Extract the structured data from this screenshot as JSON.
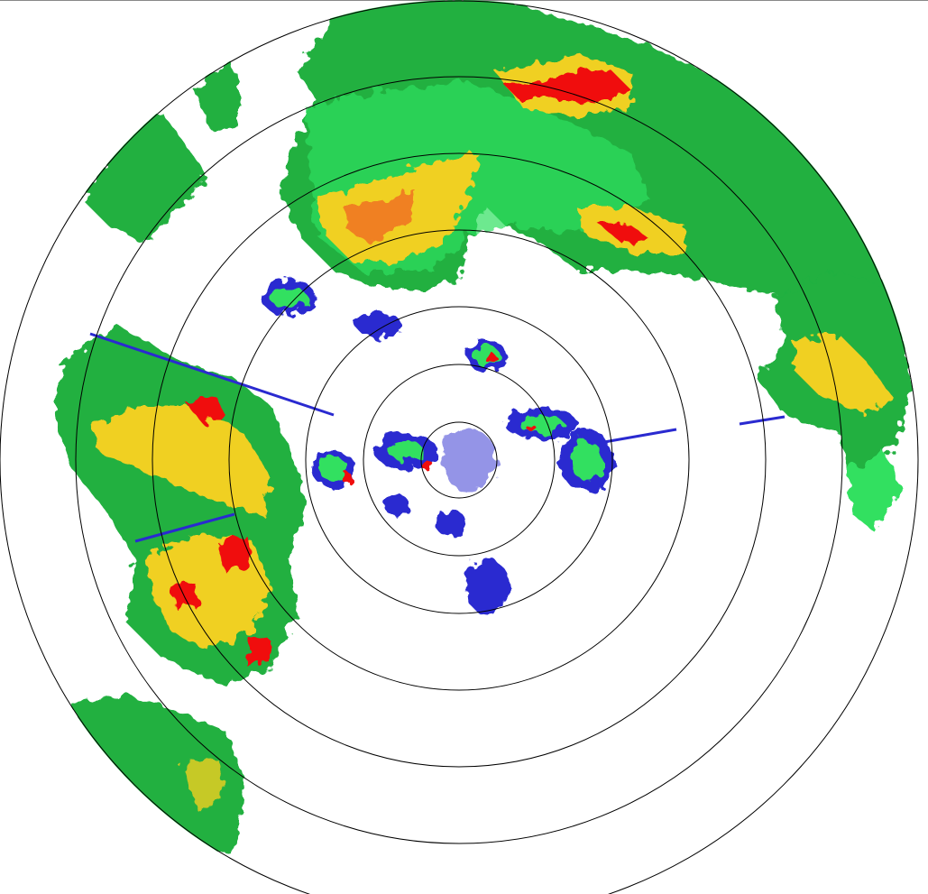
{
  "display": {
    "type": "radar-ppi-reflectivity",
    "range_rings": 7,
    "colors": {
      "background": "#ffffff",
      "ring": "#000000",
      "weak_blue": "#2a2ad0",
      "cyan": "#20c8b0",
      "light_green": "#30e060",
      "green": "#20b040",
      "yellow": "#f0d020",
      "orange": "#f08020",
      "red": "#f01010"
    }
  }
}
